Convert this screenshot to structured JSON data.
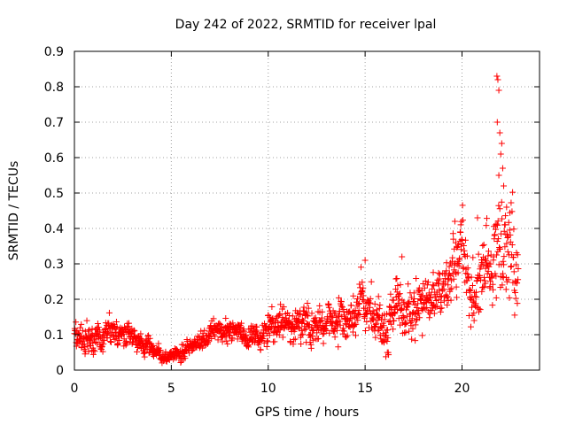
{
  "chart_data": {
    "type": "scatter",
    "title": "Day 242 of 2022, SRMTID for receiver lpal",
    "xlabel": "GPS time / hours",
    "ylabel": "SRMTID / TECUs",
    "xlim": [
      0,
      24
    ],
    "ylim": [
      0,
      0.9
    ],
    "xticks": [
      0,
      5,
      10,
      15,
      20
    ],
    "yticks": [
      0,
      0.1,
      0.2,
      0.3,
      0.4,
      0.5,
      0.6,
      0.7,
      0.8,
      0.9
    ],
    "grid": true,
    "marker": "+",
    "color": "#ff0000",
    "trend": [
      [
        0.0,
        0.1
      ],
      [
        0.5,
        0.08
      ],
      [
        1.0,
        0.09
      ],
      [
        1.5,
        0.09
      ],
      [
        2.0,
        0.12
      ],
      [
        2.5,
        0.1
      ],
      [
        3.0,
        0.09
      ],
      [
        3.5,
        0.07
      ],
      [
        4.0,
        0.06
      ],
      [
        4.5,
        0.05
      ],
      [
        5.0,
        0.05
      ],
      [
        5.5,
        0.05
      ],
      [
        6.0,
        0.06
      ],
      [
        6.5,
        0.09
      ],
      [
        7.0,
        0.11
      ],
      [
        7.5,
        0.11
      ],
      [
        8.0,
        0.12
      ],
      [
        8.5,
        0.11
      ],
      [
        9.0,
        0.1
      ],
      [
        9.5,
        0.09
      ],
      [
        10.0,
        0.1
      ],
      [
        10.5,
        0.12
      ],
      [
        11.0,
        0.13
      ],
      [
        11.5,
        0.12
      ],
      [
        12.0,
        0.12
      ],
      [
        12.5,
        0.12
      ],
      [
        13.0,
        0.13
      ],
      [
        13.5,
        0.12
      ],
      [
        14.0,
        0.14
      ],
      [
        14.5,
        0.15
      ],
      [
        15.0,
        0.18
      ],
      [
        15.5,
        0.16
      ],
      [
        16.0,
        0.15
      ],
      [
        16.5,
        0.16
      ],
      [
        17.0,
        0.2
      ],
      [
        17.5,
        0.17
      ],
      [
        18.0,
        0.19
      ],
      [
        18.5,
        0.2
      ],
      [
        19.0,
        0.18
      ],
      [
        19.5,
        0.24
      ],
      [
        20.0,
        0.28
      ],
      [
        20.5,
        0.24
      ],
      [
        21.0,
        0.27
      ],
      [
        21.5,
        0.3
      ],
      [
        22.0,
        0.38
      ],
      [
        22.5,
        0.32
      ],
      [
        22.9,
        0.22
      ]
    ],
    "noise_sd": [
      [
        0.0,
        0.03
      ],
      [
        5.0,
        0.015
      ],
      [
        10.0,
        0.03
      ],
      [
        15.0,
        0.045
      ],
      [
        18.0,
        0.05
      ],
      [
        19.5,
        0.07
      ],
      [
        21.0,
        0.08
      ],
      [
        22.0,
        0.12
      ],
      [
        22.9,
        0.09
      ]
    ],
    "n_points": 1500,
    "spikes": [
      [
        21.8,
        0.83
      ],
      [
        21.85,
        0.82
      ],
      [
        21.9,
        0.79
      ],
      [
        21.82,
        0.7
      ],
      [
        21.95,
        0.67
      ],
      [
        22.05,
        0.64
      ],
      [
        22.0,
        0.61
      ],
      [
        22.1,
        0.57
      ],
      [
        21.9,
        0.55
      ],
      [
        22.15,
        0.52
      ],
      [
        22.3,
        0.46
      ],
      [
        20.8,
        0.43
      ],
      [
        15.0,
        0.31
      ],
      [
        16.9,
        0.32
      ]
    ]
  }
}
